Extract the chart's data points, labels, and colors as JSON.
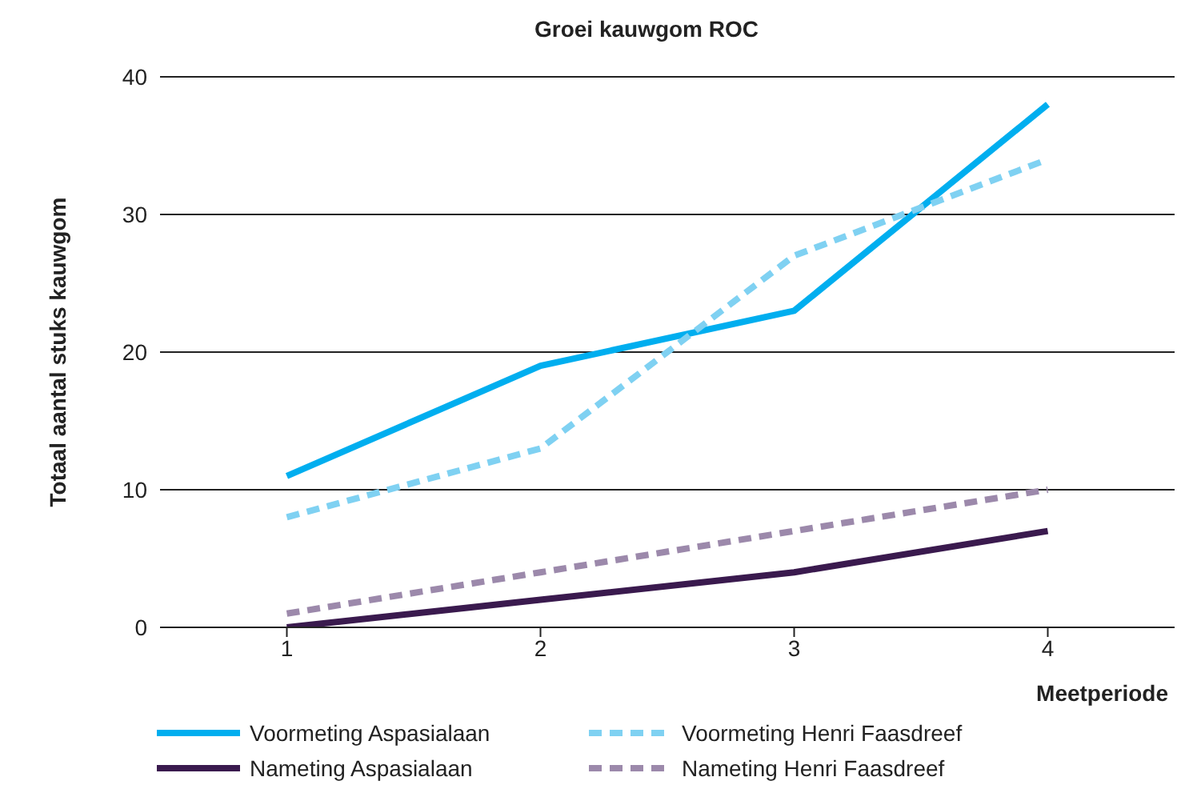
{
  "chart_data": {
    "type": "line",
    "title": "Groei kauwgom ROC",
    "xlabel": "Meetperiode",
    "ylabel": "Totaal aantal stuks kauwgom",
    "x": [
      1,
      2,
      3,
      4
    ],
    "xlim": [
      0.5,
      4.5
    ],
    "xticks": [
      1,
      2,
      3,
      4
    ],
    "ylim": [
      0,
      40
    ],
    "yticks": [
      0,
      10,
      20,
      30,
      40
    ],
    "grid": "y",
    "legend": "bottom",
    "marker": "none",
    "series": [
      {
        "name": "Voormeting Aspasialaan",
        "color": "#00aeef",
        "values": [
          11,
          19,
          23,
          38
        ],
        "line_style": "solid"
      },
      {
        "name": "Voormeting Henri Faasdreef",
        "color": "#7fd1f2",
        "values": [
          8,
          13,
          27,
          34
        ],
        "line_style": "dashed"
      },
      {
        "name": "Nameting Aspasialaan",
        "color": "#3a1a4e",
        "values": [
          0,
          2,
          4,
          7
        ],
        "line_style": "solid"
      },
      {
        "name": "Nameting Henri Faasdreef",
        "color": "#9c89ab",
        "values": [
          1,
          4,
          7,
          10
        ],
        "line_style": "dashed"
      }
    ]
  }
}
